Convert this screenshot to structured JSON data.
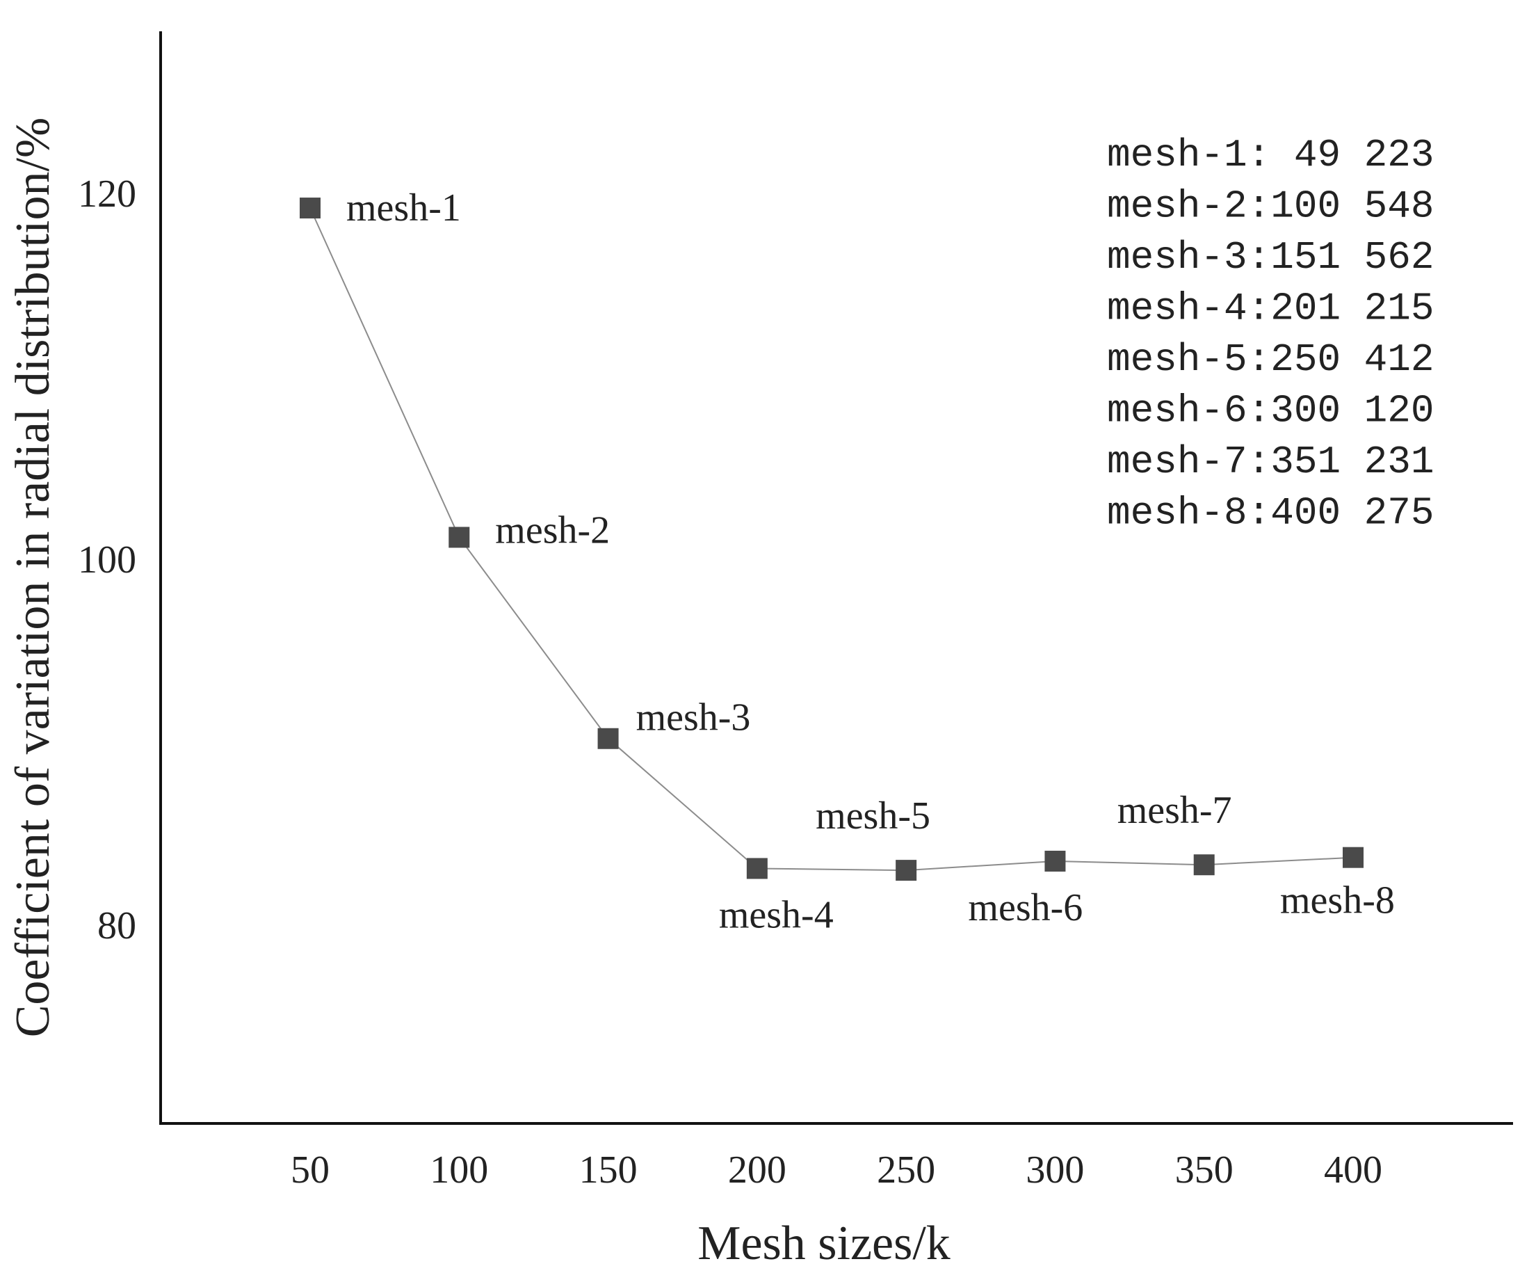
{
  "chart_data": {
    "type": "line",
    "title": "",
    "xlabel": "Mesh sizes/k",
    "ylabel": "Coefficient of variation in radial distribution/%",
    "x_ticks": [
      50,
      100,
      150,
      200,
      250,
      300,
      350,
      400
    ],
    "y_ticks": [
      80,
      100,
      120
    ],
    "xlim": [
      0,
      450
    ],
    "ylim": [
      70,
      130
    ],
    "grid": false,
    "series": [
      {
        "points": [
          {
            "x": 50,
            "y": 119.2,
            "label": "mesh-1"
          },
          {
            "x": 100,
            "y": 101.2,
            "label": "mesh-2"
          },
          {
            "x": 150,
            "y": 90.2,
            "label": "mesh-3"
          },
          {
            "x": 200,
            "y": 83.1,
            "label": "mesh-4"
          },
          {
            "x": 250,
            "y": 83.0,
            "label": "mesh-5"
          },
          {
            "x": 300,
            "y": 83.5,
            "label": "mesh-6"
          },
          {
            "x": 350,
            "y": 83.3,
            "label": "mesh-7"
          },
          {
            "x": 400,
            "y": 83.7,
            "label": "mesh-8"
          }
        ],
        "color": "#4a4a4a",
        "line_color": "#8c8c8c"
      }
    ],
    "annotation_lines": [
      "mesh-1: 49 223",
      "mesh-2:100 548",
      "mesh-3:151 562",
      "mesh-4:201 215",
      "mesh-5:250 412",
      "mesh-6:300 120",
      "mesh-7:351 231",
      "mesh-8:400 275"
    ]
  }
}
